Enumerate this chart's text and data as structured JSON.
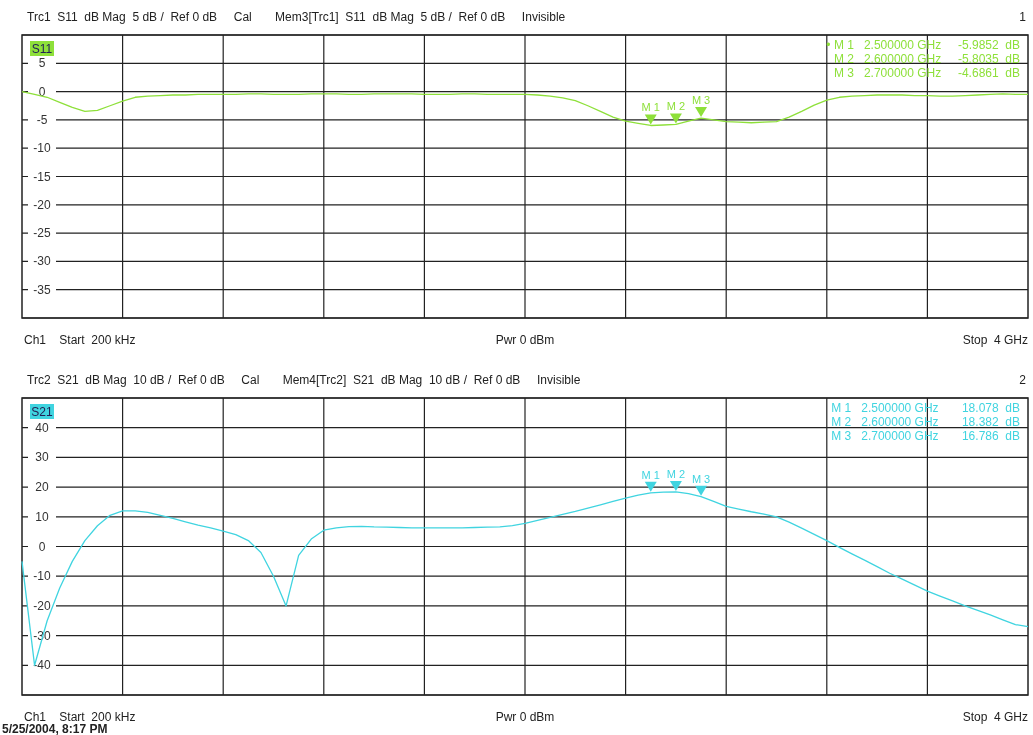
{
  "chart_data": [
    {
      "type": "line",
      "title": "Trc1  S11  dB Mag  5 dB /  Ref 0 dB     Cal       Mem3[Trc1]  S11  dB Mag  5 dB /  Ref 0 dB     Invisible",
      "subtitle": "1",
      "categories": [
        null,
        null,
        null,
        null,
        null,
        null,
        null,
        null,
        null,
        null,
        null,
        null,
        null,
        null,
        null,
        null,
        null,
        null,
        null,
        null,
        null,
        null,
        null,
        null,
        null,
        null,
        null,
        null,
        null,
        null,
        null,
        null,
        null,
        null,
        null,
        null,
        null,
        null,
        null,
        null,
        null,
        null,
        null,
        null,
        null,
        null,
        null,
        null,
        null,
        null,
        null,
        null,
        null,
        null,
        null,
        null,
        null,
        null,
        null,
        null,
        null,
        null,
        null,
        null,
        null,
        null,
        null,
        null,
        null,
        null,
        null,
        null,
        null,
        null,
        null,
        null,
        null,
        null,
        null,
        null,
        null
      ],
      "series": [
        {
          "name": "S11",
          "color": "#8ee03a",
          "values": [
            0,
            -0.5,
            -1,
            -1.9,
            -2.8,
            -3.5,
            -3.3,
            -2.5,
            -1.7,
            -1,
            -0.8,
            -0.7,
            -0.6,
            -0.6,
            -0.5,
            -0.5,
            -0.5,
            -0.5,
            -0.4,
            -0.4,
            -0.5,
            -0.5,
            -0.5,
            -0.4,
            -0.4,
            -0.4,
            -0.5,
            -0.5,
            -0.4,
            -0.4,
            -0.4,
            -0.4,
            -0.5,
            -0.5,
            -0.5,
            -0.4,
            -0.4,
            -0.5,
            -0.5,
            -0.5,
            -0.5,
            -0.6,
            -0.8,
            -1.1,
            -1.6,
            -2.5,
            -3.5,
            -4.5,
            -5.2,
            -5.6,
            -5.9852,
            -5.9,
            -5.8035,
            -5.2,
            -4.6861,
            -5,
            -5.3,
            -5.4,
            -5.5,
            -5.4,
            -5.3,
            -4.5,
            -3.5,
            -2.4,
            -1.5,
            -1,
            -0.8,
            -0.7,
            -0.6,
            -0.6,
            -0.6,
            -0.7,
            -0.7,
            -0.8,
            -0.8,
            -0.7,
            -0.6,
            -0.5,
            -0.4,
            -0.5,
            -0.5
          ]
        }
      ],
      "ylim": [
        -40,
        10
      ],
      "yticks": [
        {
          "value": 10,
          "label": null
        },
        5,
        0,
        -5,
        -10,
        -15,
        -20,
        -25,
        -30,
        -35,
        {
          "value": -40,
          "label": null
        }
      ],
      "tick_labels": "y",
      "grid": true,
      "annotations": [
        "Ch1    Start  200 kHz",
        "Pwr  0 dBm",
        "Stop  4 GHz",
        "• M 1   2.500000 GHz     -5.9852  dB",
        "M 2   2.600000 GHz     -5.8035  dB",
        "M 3   2.700000 GHz     -4.6861  dB",
        {
          "text": "M 1",
          "y": -5.9852
        },
        {
          "text": "M 2",
          "y": -5.8035
        },
        {
          "text": "M 3",
          "y": -4.6861
        }
      ]
    },
    {
      "type": "line",
      "title": "Trc2  S21  dB Mag  10 dB /  Ref 0 dB     Cal       Mem4[Trc2]  S21  dB Mag  10 dB /  Ref 0 dB     Invisible",
      "subtitle": "2",
      "categories": [
        null,
        null,
        null,
        null,
        null,
        null,
        null,
        null,
        null,
        null,
        null,
        null,
        null,
        null,
        null,
        null,
        null,
        null,
        null,
        null,
        null,
        null,
        null,
        null,
        null,
        null,
        null,
        null,
        null,
        null,
        null,
        null,
        null,
        null,
        null,
        null,
        null,
        null,
        null,
        null,
        null,
        null,
        null,
        null,
        null,
        null,
        null,
        null,
        null,
        null,
        null,
        null,
        null,
        null,
        null,
        null,
        null,
        null,
        null,
        null,
        null,
        null,
        null,
        null,
        null,
        null,
        null,
        null,
        null,
        null,
        null,
        null,
        null,
        null,
        null,
        null,
        null,
        null,
        null,
        null,
        null
      ],
      "series": [
        {
          "name": "S21",
          "color": "#40d4e0",
          "values": [
            -5,
            -40,
            -25,
            -14,
            -5,
            2,
            7,
            10.5,
            12,
            12,
            11.5,
            10.5,
            9.5,
            8.3,
            7.2,
            6.3,
            5.2,
            4,
            2,
            -2,
            -10,
            -20,
            -3,
            2.5,
            5.5,
            6.3,
            6.7,
            6.8,
            6.6,
            6.5,
            6.4,
            6.3,
            6.3,
            6.3,
            6.3,
            6.3,
            6.4,
            6.5,
            6.6,
            7,
            7.8,
            8.8,
            9.8,
            10.8,
            11.8,
            12.9,
            14,
            15.2,
            16.3,
            17.3,
            18.078,
            18.3,
            18.382,
            17.8,
            16.786,
            15.2,
            13.5,
            12.6,
            11.7,
            10.9,
            10,
            8.2,
            6.2,
            4.1,
            2,
            -0.3,
            -2.5,
            -4.6,
            -6.8,
            -9,
            -11,
            -13,
            -15,
            -16.7,
            -18.3,
            -20,
            -21.5,
            -23,
            -24.7,
            -26.3,
            -27
          ]
        }
      ],
      "ylim": [
        -50,
        50
      ],
      "yticks": [
        {
          "value": 50,
          "label": null
        },
        40,
        30,
        20,
        10,
        0,
        -10,
        -20,
        -30,
        -40,
        {
          "value": -50,
          "label": null
        }
      ],
      "tick_labels": "y",
      "grid": true,
      "annotations": [
        "Ch1    Start  200 kHz",
        "Pwr  0 dBm",
        "Stop  4 GHz",
        "M 1   2.500000 GHz       18.078  dB",
        "M 2   2.600000 GHz       18.382  dB",
        "M 3   2.700000 GHz       16.786  dB",
        {
          "text": "M 1",
          "y": 18.078
        },
        {
          "text": "M 2",
          "y": 18.382
        },
        {
          "text": "M 3",
          "y": 16.786
        },
        "5/25/2004, 8:17 PM"
      ]
    }
  ]
}
